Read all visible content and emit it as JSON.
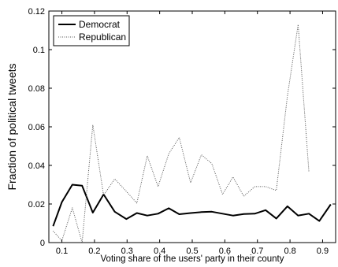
{
  "chart_data": {
    "type": "line",
    "title": "",
    "xlabel": "Voting share of the users' party in their county",
    "ylabel": "Fraction of political tweets",
    "xlim": [
      0.06,
      0.94
    ],
    "ylim": [
      0,
      0.12
    ],
    "xticks": [
      0.1,
      0.2,
      0.3,
      0.4,
      0.5,
      0.6,
      0.7,
      0.8,
      0.9
    ],
    "xtick_labels": [
      "0.1",
      "0.2",
      "0.3",
      "0.4",
      "0.5",
      "0.6",
      "0.7",
      "0.8",
      "0.9"
    ],
    "yticks": [
      0,
      0.02,
      0.04,
      0.06,
      0.08,
      0.1,
      0.12
    ],
    "ytick_labels": [
      "0",
      "0.02",
      "0.04",
      "0.06",
      "0.08",
      "0.1",
      "0.12"
    ],
    "grid": false,
    "legend_position": "top-left",
    "series": [
      {
        "name": "Democrat",
        "color": "#000000",
        "style": "solid",
        "points": [
          [
            0.073,
            0.0085
          ],
          [
            0.1,
            0.021
          ],
          [
            0.132,
            0.03
          ],
          [
            0.162,
            0.0295
          ],
          [
            0.195,
            0.0155
          ],
          [
            0.228,
            0.025
          ],
          [
            0.262,
            0.016
          ],
          [
            0.298,
            0.0122
          ],
          [
            0.33,
            0.0153
          ],
          [
            0.362,
            0.014
          ],
          [
            0.395,
            0.015
          ],
          [
            0.428,
            0.0178
          ],
          [
            0.46,
            0.0147
          ],
          [
            0.495,
            0.0153
          ],
          [
            0.528,
            0.0158
          ],
          [
            0.56,
            0.016
          ],
          [
            0.593,
            0.015
          ],
          [
            0.625,
            0.014
          ],
          [
            0.658,
            0.0148
          ],
          [
            0.692,
            0.015
          ],
          [
            0.725,
            0.0168
          ],
          [
            0.758,
            0.0125
          ],
          [
            0.792,
            0.0188
          ],
          [
            0.825,
            0.014
          ],
          [
            0.858,
            0.015
          ],
          [
            0.89,
            0.0112
          ],
          [
            0.925,
            0.0198
          ]
        ]
      },
      {
        "name": "Republican",
        "color": "#555555",
        "style": "dotted",
        "points": [
          [
            0.073,
            0.006
          ],
          [
            0.1,
            0.001
          ],
          [
            0.132,
            0.018
          ],
          [
            0.162,
            0.0
          ],
          [
            0.195,
            0.061
          ],
          [
            0.228,
            0.0245
          ],
          [
            0.262,
            0.033
          ],
          [
            0.298,
            0.0265
          ],
          [
            0.33,
            0.0205
          ],
          [
            0.362,
            0.045
          ],
          [
            0.395,
            0.029
          ],
          [
            0.428,
            0.046
          ],
          [
            0.46,
            0.0545
          ],
          [
            0.495,
            0.031
          ],
          [
            0.528,
            0.0455
          ],
          [
            0.56,
            0.041
          ],
          [
            0.593,
            0.025
          ],
          [
            0.625,
            0.034
          ],
          [
            0.658,
            0.024
          ],
          [
            0.692,
            0.029
          ],
          [
            0.725,
            0.029
          ],
          [
            0.758,
            0.027
          ],
          [
            0.792,
            0.076
          ],
          [
            0.825,
            0.113
          ],
          [
            0.858,
            0.0365
          ]
        ]
      }
    ]
  }
}
